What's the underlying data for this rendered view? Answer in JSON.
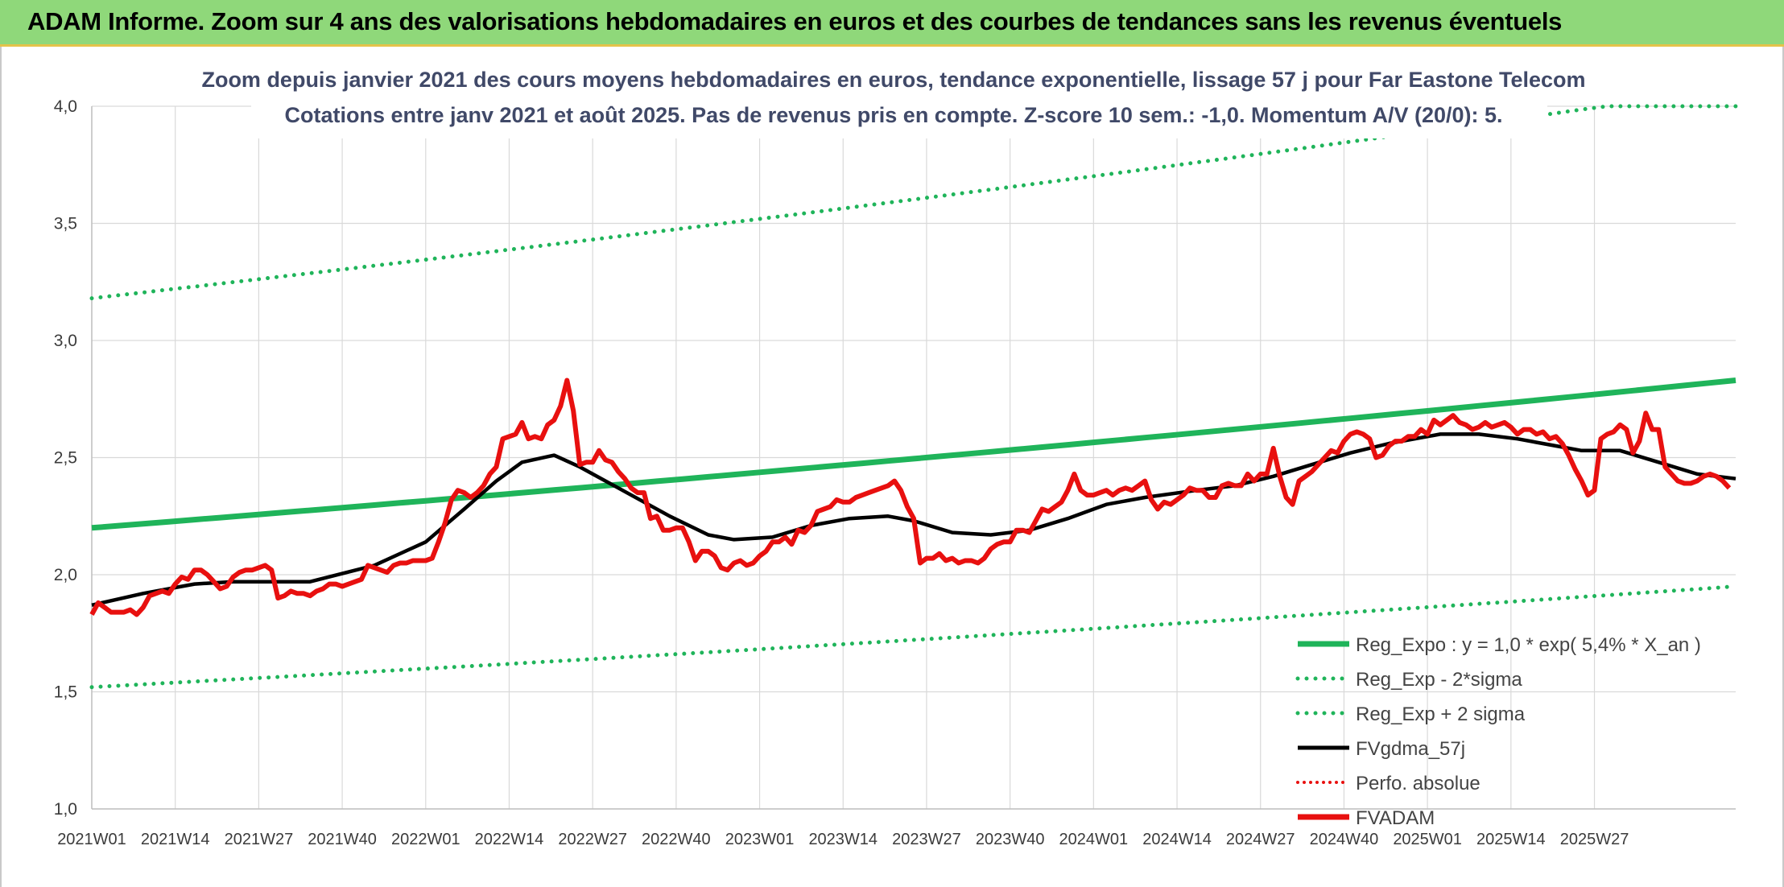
{
  "banner": {
    "title": "ADAM Informe. Zoom sur 4 ans des valorisations hebdomadaires en euros et des courbes de tendances sans les revenus éventuels"
  },
  "chart_data": {
    "type": "line",
    "title": "Zoom depuis janvier 2021 des cours moyens hebdomadaires en euros, tendance exponentielle, lissage 57 j pour Far Eastone Telecom",
    "subtitle": "Cotations entre janv 2021 et août 2025. Pas de revenus pris en compte. Z-score 10 sem.: -1,0. Momentum A/V (20/0): 5.",
    "ylim": [
      1.0,
      4.0
    ],
    "yticks": [
      "1,0",
      "1,5",
      "2,0",
      "2,5",
      "3,0",
      "3,5",
      "4,0"
    ],
    "xticks": [
      "2021W01",
      "2021W14",
      "2021W27",
      "2021W40",
      "2022W01",
      "2022W14",
      "2022W27",
      "2022W40",
      "2023W01",
      "2023W14",
      "2023W27",
      "2023W40",
      "2024W01",
      "2024W14",
      "2024W27",
      "2024W40",
      "2025W01",
      "2025W14",
      "2025W27"
    ],
    "x_start": "2021W01",
    "x_end": "2025W33",
    "grid": true,
    "legend_position": "bottom-right",
    "legend": [
      {
        "name": "Reg_Expo : y = 1,0 * exp( 5,4% * X_an )",
        "color": "#1fb45a",
        "style": "solid"
      },
      {
        "name": "Reg_Exp - 2*sigma",
        "color": "#1fb45a",
        "style": "dotted"
      },
      {
        "name": "Reg_Exp + 2 sigma",
        "color": "#1fb45a",
        "style": "dotted"
      },
      {
        "name": "FVgdma_57j",
        "color": "#000000",
        "style": "solid"
      },
      {
        "name": "Perfo. absolue",
        "color": "#e8100f",
        "style": "dotted"
      },
      {
        "name": "FVADAM",
        "color": "#e8100f",
        "style": "solid"
      }
    ],
    "series": [
      {
        "name": "Reg_Expo : y = 1,0 * exp( 5,4% * X_an )",
        "start": 2.2,
        "end": 2.83
      },
      {
        "name": "Reg_Exp - 2*sigma",
        "start": 1.52,
        "end": 1.95
      },
      {
        "name": "Reg_Exp + 2 sigma",
        "start": 3.18,
        "end": 4.08
      },
      {
        "name": "FVgdma_57j",
        "points": [
          [
            0,
            1.87
          ],
          [
            8,
            1.92
          ],
          [
            16,
            1.96
          ],
          [
            22,
            1.97
          ],
          [
            34,
            1.97
          ],
          [
            44,
            2.04
          ],
          [
            52,
            2.14
          ],
          [
            58,
            2.28
          ],
          [
            63,
            2.4
          ],
          [
            67,
            2.48
          ],
          [
            72,
            2.51
          ],
          [
            76,
            2.46
          ],
          [
            82,
            2.37
          ],
          [
            90,
            2.25
          ],
          [
            96,
            2.17
          ],
          [
            100,
            2.15
          ],
          [
            106,
            2.16
          ],
          [
            112,
            2.21
          ],
          [
            118,
            2.24
          ],
          [
            124,
            2.25
          ],
          [
            128,
            2.23
          ],
          [
            134,
            2.18
          ],
          [
            140,
            2.17
          ],
          [
            146,
            2.19
          ],
          [
            152,
            2.24
          ],
          [
            158,
            2.3
          ],
          [
            164,
            2.33
          ],
          [
            172,
            2.36
          ],
          [
            178,
            2.38
          ],
          [
            184,
            2.42
          ],
          [
            190,
            2.47
          ],
          [
            196,
            2.52
          ],
          [
            202,
            2.56
          ],
          [
            210,
            2.6
          ],
          [
            216,
            2.6
          ],
          [
            222,
            2.58
          ],
          [
            228,
            2.55
          ],
          [
            232,
            2.53
          ],
          [
            238,
            2.53
          ],
          [
            244,
            2.48
          ],
          [
            250,
            2.43
          ],
          [
            256,
            2.41
          ]
        ]
      },
      {
        "name": "FVADAM",
        "points": [
          [
            0,
            1.83
          ],
          [
            1,
            1.88
          ],
          [
            2,
            1.86
          ],
          [
            3,
            1.84
          ],
          [
            5,
            1.84
          ],
          [
            6,
            1.85
          ],
          [
            7,
            1.83
          ],
          [
            8,
            1.86
          ],
          [
            9,
            1.91
          ],
          [
            10,
            1.92
          ],
          [
            11,
            1.93
          ],
          [
            12,
            1.92
          ],
          [
            13,
            1.96
          ],
          [
            14,
            1.99
          ],
          [
            15,
            1.98
          ],
          [
            16,
            2.02
          ],
          [
            17,
            2.02
          ],
          [
            18,
            2.0
          ],
          [
            19,
            1.97
          ],
          [
            20,
            1.94
          ],
          [
            21,
            1.95
          ],
          [
            22,
            1.99
          ],
          [
            23,
            2.01
          ],
          [
            24,
            2.02
          ],
          [
            25,
            2.02
          ],
          [
            26,
            2.03
          ],
          [
            27,
            2.04
          ],
          [
            28,
            2.02
          ],
          [
            29,
            1.9
          ],
          [
            30,
            1.91
          ],
          [
            31,
            1.93
          ],
          [
            32,
            1.92
          ],
          [
            33,
            1.92
          ],
          [
            34,
            1.91
          ],
          [
            35,
            1.93
          ],
          [
            36,
            1.94
          ],
          [
            37,
            1.96
          ],
          [
            38,
            1.96
          ],
          [
            39,
            1.95
          ],
          [
            40,
            1.96
          ],
          [
            41,
            1.97
          ],
          [
            42,
            1.98
          ],
          [
            43,
            2.04
          ],
          [
            44,
            2.03
          ],
          [
            45,
            2.02
          ],
          [
            46,
            2.01
          ],
          [
            47,
            2.04
          ],
          [
            48,
            2.05
          ],
          [
            49,
            2.05
          ],
          [
            50,
            2.06
          ],
          [
            51,
            2.06
          ],
          [
            52,
            2.06
          ],
          [
            53,
            2.07
          ],
          [
            54,
            2.14
          ],
          [
            55,
            2.22
          ],
          [
            56,
            2.32
          ],
          [
            57,
            2.36
          ],
          [
            58,
            2.35
          ],
          [
            59,
            2.33
          ],
          [
            60,
            2.35
          ],
          [
            61,
            2.38
          ],
          [
            62,
            2.43
          ],
          [
            63,
            2.46
          ],
          [
            64,
            2.58
          ],
          [
            65,
            2.59
          ],
          [
            66,
            2.6
          ],
          [
            67,
            2.65
          ],
          [
            68,
            2.58
          ],
          [
            69,
            2.59
          ],
          [
            70,
            2.58
          ],
          [
            71,
            2.64
          ],
          [
            72,
            2.66
          ],
          [
            73,
            2.72
          ],
          [
            74,
            2.83
          ],
          [
            75,
            2.7
          ],
          [
            76,
            2.47
          ],
          [
            77,
            2.48
          ],
          [
            78,
            2.48
          ],
          [
            79,
            2.53
          ],
          [
            80,
            2.49
          ],
          [
            81,
            2.48
          ],
          [
            82,
            2.44
          ],
          [
            83,
            2.41
          ],
          [
            84,
            2.37
          ],
          [
            85,
            2.35
          ],
          [
            86,
            2.35
          ],
          [
            87,
            2.24
          ],
          [
            88,
            2.25
          ],
          [
            89,
            2.19
          ],
          [
            90,
            2.19
          ],
          [
            91,
            2.2
          ],
          [
            92,
            2.2
          ],
          [
            93,
            2.14
          ],
          [
            94,
            2.06
          ],
          [
            95,
            2.1
          ],
          [
            96,
            2.1
          ],
          [
            97,
            2.08
          ],
          [
            98,
            2.03
          ],
          [
            99,
            2.02
          ],
          [
            100,
            2.05
          ],
          [
            101,
            2.06
          ],
          [
            102,
            2.04
          ],
          [
            103,
            2.05
          ],
          [
            104,
            2.08
          ],
          [
            105,
            2.1
          ],
          [
            106,
            2.14
          ],
          [
            107,
            2.14
          ],
          [
            108,
            2.16
          ],
          [
            109,
            2.13
          ],
          [
            110,
            2.19
          ],
          [
            111,
            2.18
          ],
          [
            112,
            2.21
          ],
          [
            113,
            2.27
          ],
          [
            114,
            2.28
          ],
          [
            115,
            2.29
          ],
          [
            116,
            2.32
          ],
          [
            117,
            2.31
          ],
          [
            118,
            2.31
          ],
          [
            119,
            2.33
          ],
          [
            120,
            2.34
          ],
          [
            121,
            2.35
          ],
          [
            122,
            2.36
          ],
          [
            123,
            2.37
          ],
          [
            124,
            2.38
          ],
          [
            125,
            2.4
          ],
          [
            126,
            2.36
          ],
          [
            127,
            2.29
          ],
          [
            128,
            2.24
          ],
          [
            129,
            2.05
          ],
          [
            130,
            2.07
          ],
          [
            131,
            2.07
          ],
          [
            132,
            2.09
          ],
          [
            133,
            2.06
          ],
          [
            134,
            2.07
          ],
          [
            135,
            2.05
          ],
          [
            136,
            2.06
          ],
          [
            137,
            2.06
          ],
          [
            138,
            2.05
          ],
          [
            139,
            2.07
          ],
          [
            140,
            2.11
          ],
          [
            141,
            2.13
          ],
          [
            142,
            2.14
          ],
          [
            143,
            2.14
          ],
          [
            144,
            2.19
          ],
          [
            145,
            2.19
          ],
          [
            146,
            2.18
          ],
          [
            147,
            2.23
          ],
          [
            148,
            2.28
          ],
          [
            149,
            2.27
          ],
          [
            150,
            2.29
          ],
          [
            151,
            2.31
          ],
          [
            152,
            2.36
          ],
          [
            153,
            2.43
          ],
          [
            154,
            2.36
          ],
          [
            155,
            2.34
          ],
          [
            156,
            2.34
          ],
          [
            157,
            2.35
          ],
          [
            158,
            2.36
          ],
          [
            159,
            2.34
          ],
          [
            160,
            2.36
          ],
          [
            161,
            2.37
          ],
          [
            162,
            2.36
          ],
          [
            163,
            2.38
          ],
          [
            164,
            2.4
          ],
          [
            165,
            2.32
          ],
          [
            166,
            2.28
          ],
          [
            167,
            2.31
          ],
          [
            168,
            2.3
          ],
          [
            169,
            2.32
          ],
          [
            170,
            2.34
          ],
          [
            171,
            2.37
          ],
          [
            172,
            2.36
          ],
          [
            173,
            2.36
          ],
          [
            174,
            2.33
          ],
          [
            175,
            2.33
          ],
          [
            176,
            2.38
          ],
          [
            177,
            2.39
          ],
          [
            178,
            2.38
          ],
          [
            179,
            2.38
          ],
          [
            180,
            2.43
          ],
          [
            181,
            2.4
          ],
          [
            182,
            2.43
          ],
          [
            183,
            2.43
          ],
          [
            184,
            2.54
          ],
          [
            185,
            2.42
          ],
          [
            186,
            2.33
          ],
          [
            187,
            2.3
          ],
          [
            188,
            2.4
          ],
          [
            189,
            2.42
          ],
          [
            190,
            2.44
          ],
          [
            191,
            2.47
          ],
          [
            192,
            2.5
          ],
          [
            193,
            2.53
          ],
          [
            194,
            2.52
          ],
          [
            195,
            2.57
          ],
          [
            196,
            2.6
          ],
          [
            197,
            2.61
          ],
          [
            198,
            2.6
          ],
          [
            199,
            2.58
          ],
          [
            200,
            2.5
          ],
          [
            201,
            2.51
          ],
          [
            202,
            2.55
          ],
          [
            203,
            2.57
          ],
          [
            204,
            2.57
          ],
          [
            205,
            2.59
          ],
          [
            206,
            2.59
          ],
          [
            207,
            2.62
          ],
          [
            208,
            2.6
          ],
          [
            209,
            2.66
          ],
          [
            210,
            2.64
          ],
          [
            211,
            2.66
          ],
          [
            212,
            2.68
          ],
          [
            213,
            2.65
          ],
          [
            214,
            2.64
          ],
          [
            215,
            2.62
          ],
          [
            216,
            2.63
          ],
          [
            217,
            2.65
          ],
          [
            218,
            2.63
          ],
          [
            219,
            2.64
          ],
          [
            220,
            2.65
          ],
          [
            221,
            2.63
          ],
          [
            222,
            2.6
          ],
          [
            223,
            2.62
          ],
          [
            224,
            2.62
          ],
          [
            225,
            2.6
          ],
          [
            226,
            2.61
          ],
          [
            227,
            2.58
          ],
          [
            228,
            2.59
          ],
          [
            229,
            2.56
          ],
          [
            230,
            2.51
          ],
          [
            231,
            2.45
          ],
          [
            232,
            2.4
          ],
          [
            233,
            2.34
          ],
          [
            234,
            2.36
          ],
          [
            235,
            2.58
          ],
          [
            236,
            2.6
          ],
          [
            237,
            2.61
          ],
          [
            238,
            2.64
          ],
          [
            239,
            2.62
          ],
          [
            240,
            2.52
          ],
          [
            241,
            2.57
          ],
          [
            242,
            2.69
          ],
          [
            243,
            2.62
          ],
          [
            244,
            2.62
          ],
          [
            245,
            2.46
          ],
          [
            246,
            2.43
          ],
          [
            247,
            2.4
          ],
          [
            248,
            2.39
          ],
          [
            249,
            2.39
          ],
          [
            250,
            2.4
          ],
          [
            251,
            2.42
          ],
          [
            252,
            2.43
          ],
          [
            253,
            2.42
          ],
          [
            254,
            2.4
          ],
          [
            255,
            2.37
          ]
        ]
      }
    ]
  }
}
